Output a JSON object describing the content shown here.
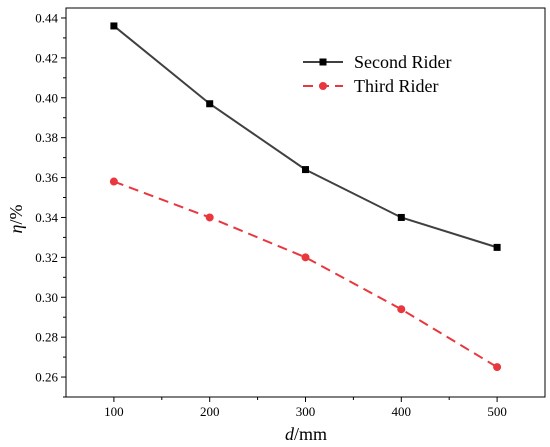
{
  "chart_data": {
    "type": "line",
    "x": [
      100,
      200,
      300,
      400,
      500
    ],
    "series": [
      {
        "name": "Second Rider",
        "values": [
          0.436,
          0.397,
          0.364,
          0.34,
          0.325
        ],
        "color": "#404040",
        "marker": "square",
        "dash": "solid"
      },
      {
        "name": "Third Rider",
        "values": [
          0.358,
          0.34,
          0.32,
          0.294,
          0.265
        ],
        "color": "#e8383d",
        "marker": "circle",
        "dash": "dashed"
      }
    ],
    "xlabel_var": "d",
    "xlabel_unit": "/mm",
    "ylabel_var": "η",
    "ylabel_unit": "/%",
    "xlim": [
      50,
      550
    ],
    "ylim": [
      0.25,
      0.445
    ],
    "xticks": [
      "100",
      "200",
      "300",
      "400",
      "500"
    ],
    "yticks": [
      "0.26",
      "0.28",
      "0.30",
      "0.32",
      "0.34",
      "0.36",
      "0.38",
      "0.40",
      "0.42",
      "0.44"
    ],
    "grid": false,
    "legend_position": "top-right"
  }
}
